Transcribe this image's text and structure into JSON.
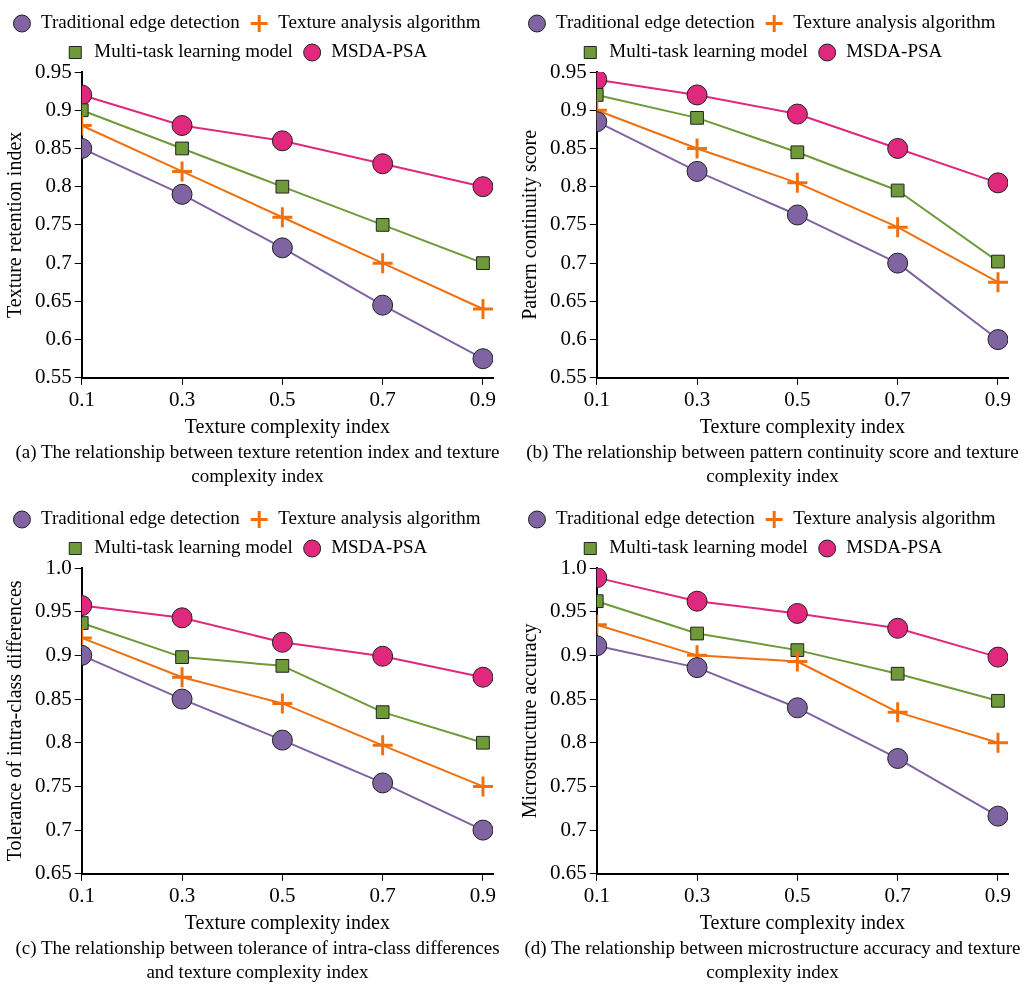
{
  "chart_data": [
    {
      "type": "line",
      "title": "(a) The relationship between texture retention index and texture complexity index",
      "xlabel": "Texture complexity index",
      "ylabel": "Texture retention index",
      "x": [
        0.1,
        0.3,
        0.5,
        0.7,
        0.9
      ],
      "xlim": [
        0.1,
        0.92
      ],
      "xticks": [
        0.1,
        0.3,
        0.5,
        0.7,
        0.9
      ],
      "ylim": [
        0.55,
        0.95
      ],
      "yticks": [
        0.55,
        0.6,
        0.65,
        0.7,
        0.75,
        0.8,
        0.85,
        0.9,
        0.95
      ],
      "grid": false,
      "legend": "top",
      "series": [
        {
          "name": "Traditional edge detection",
          "color": "#8064a2",
          "marker": "circle",
          "values": [
            0.85,
            0.79,
            0.72,
            0.645,
            0.575
          ]
        },
        {
          "name": "Texture analysis algorithm",
          "color": "#f07010",
          "marker": "cross",
          "values": [
            0.88,
            0.82,
            0.76,
            0.7,
            0.64
          ]
        },
        {
          "name": "Multi-task learning model",
          "color": "#6e9a3a",
          "marker": "square",
          "values": [
            0.9,
            0.85,
            0.8,
            0.75,
            0.7
          ]
        },
        {
          "name": "MSDA-PSA",
          "color": "#e0287c",
          "marker": "circle",
          "values": [
            0.92,
            0.88,
            0.86,
            0.83,
            0.8
          ]
        }
      ]
    },
    {
      "type": "line",
      "title": "(b) The relationship between pattern continuity score and texture complexity index",
      "xlabel": "Texture complexity index",
      "ylabel": "Pattern continuity score",
      "x": [
        0.1,
        0.3,
        0.5,
        0.7,
        0.9
      ],
      "xlim": [
        0.1,
        0.92
      ],
      "xticks": [
        0.1,
        0.3,
        0.5,
        0.7,
        0.9
      ],
      "ylim": [
        0.55,
        0.95
      ],
      "yticks": [
        0.55,
        0.6,
        0.65,
        0.7,
        0.75,
        0.8,
        0.85,
        0.9,
        0.95
      ],
      "grid": false,
      "legend": "top",
      "series": [
        {
          "name": "Traditional edge detection",
          "color": "#8064a2",
          "marker": "circle",
          "values": [
            0.885,
            0.82,
            0.763,
            0.7,
            0.6
          ]
        },
        {
          "name": "Texture analysis algorithm",
          "color": "#f07010",
          "marker": "cross",
          "values": [
            0.9,
            0.85,
            0.805,
            0.747,
            0.675
          ]
        },
        {
          "name": "Multi-task learning model",
          "color": "#6e9a3a",
          "marker": "square",
          "values": [
            0.92,
            0.89,
            0.845,
            0.795,
            0.702
          ]
        },
        {
          "name": "MSDA-PSA",
          "color": "#e0287c",
          "marker": "circle",
          "values": [
            0.94,
            0.92,
            0.895,
            0.85,
            0.805
          ]
        }
      ]
    },
    {
      "type": "line",
      "title": "(c) The relationship between tolerance of intra-class differences and texture complexity index",
      "xlabel": "Texture complexity index",
      "ylabel": "Tolerance of intra-class differences",
      "x": [
        0.1,
        0.3,
        0.5,
        0.7,
        0.9
      ],
      "xlim": [
        0.1,
        0.92
      ],
      "xticks": [
        0.1,
        0.3,
        0.5,
        0.7,
        0.9
      ],
      "ylim": [
        0.65,
        1.0
      ],
      "yticks": [
        0.65,
        0.7,
        0.75,
        0.8,
        0.85,
        0.9,
        0.95,
        {
          "value": 1.0,
          "label": "1.0"
        }
      ],
      "grid": false,
      "legend": "top",
      "series": [
        {
          "name": "Traditional edge detection",
          "color": "#8064a2",
          "marker": "circle",
          "values": [
            0.9,
            0.85,
            0.803,
            0.754,
            0.7
          ]
        },
        {
          "name": "Texture analysis algorithm",
          "color": "#f07010",
          "marker": "cross",
          "values": [
            0.92,
            0.875,
            0.845,
            0.797,
            0.75
          ]
        },
        {
          "name": "Multi-task learning model",
          "color": "#6e9a3a",
          "marker": "square",
          "values": [
            0.937,
            0.898,
            0.888,
            0.835,
            0.8
          ]
        },
        {
          "name": "MSDA-PSA",
          "color": "#e0287c",
          "marker": "circle",
          "values": [
            0.957,
            0.943,
            0.915,
            0.899,
            0.875
          ]
        }
      ]
    },
    {
      "type": "line",
      "title": "(d) The relationship between microstructure accuracy and texture complexity index",
      "xlabel": "Texture complexity index",
      "ylabel": "Microstructure accuracy",
      "x": [
        0.1,
        0.3,
        0.5,
        0.7,
        0.9
      ],
      "xlim": [
        0.1,
        0.92
      ],
      "xticks": [
        0.1,
        0.3,
        0.5,
        0.7,
        0.9
      ],
      "ylim": [
        0.65,
        1.0
      ],
      "yticks": [
        0.65,
        0.7,
        0.75,
        0.8,
        0.85,
        0.9,
        0.95,
        {
          "value": 1.0,
          "label": "1.0"
        }
      ],
      "grid": false,
      "legend": "top",
      "series": [
        {
          "name": "Traditional edge detection",
          "color": "#8064a2",
          "marker": "circle",
          "values": [
            0.911,
            0.886,
            0.84,
            0.782,
            0.716
          ]
        },
        {
          "name": "Texture analysis algorithm",
          "color": "#f07010",
          "marker": "cross",
          "values": [
            0.935,
            0.9,
            0.893,
            0.835,
            0.8
          ]
        },
        {
          "name": "Multi-task learning model",
          "color": "#6e9a3a",
          "marker": "square",
          "values": [
            0.962,
            0.925,
            0.906,
            0.879,
            0.848
          ]
        },
        {
          "name": "MSDA-PSA",
          "color": "#e0287c",
          "marker": "circle",
          "values": [
            0.989,
            0.962,
            0.948,
            0.931,
            0.898
          ]
        }
      ]
    }
  ]
}
